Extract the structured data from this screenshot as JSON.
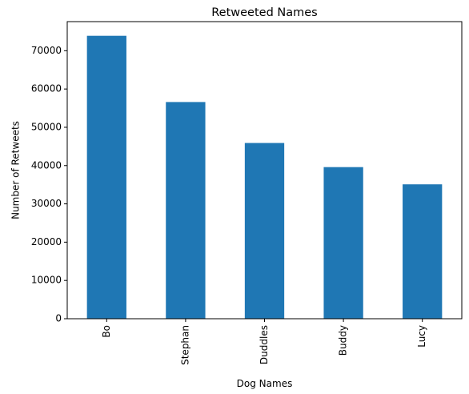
{
  "chart_data": {
    "type": "bar",
    "title": "Retweeted Names",
    "xlabel": "Dog Names",
    "ylabel": "Number of Retweets",
    "categories": [
      "Bo",
      "Stephan",
      "Duddles",
      "Buddy",
      "Lucy"
    ],
    "values": [
      73900,
      56600,
      45900,
      39600,
      35100
    ],
    "ylim": [
      0,
      77600
    ],
    "yticks": [
      0,
      10000,
      20000,
      30000,
      40000,
      50000,
      60000,
      70000
    ],
    "bar_color": "#1f77b4",
    "grid": false,
    "legend": "none"
  }
}
